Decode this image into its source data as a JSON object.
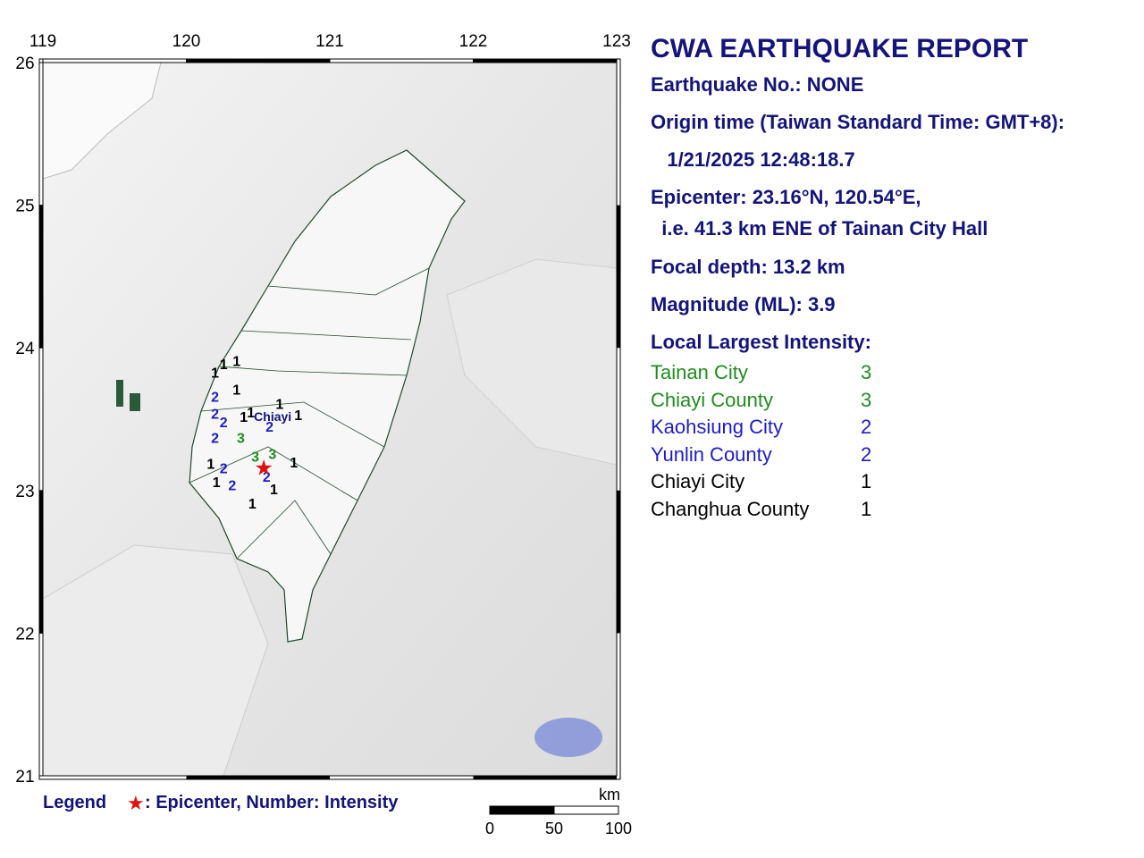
{
  "map": {
    "lon_ticks": [
      119,
      120,
      121,
      122,
      123
    ],
    "lat_ticks": [
      21,
      22,
      23,
      24,
      25,
      26
    ],
    "city_label": "Chiayi",
    "epicenter": {
      "lat": 23.16,
      "lon": 120.54
    },
    "intensity_colors": {
      "1": "#000000",
      "2": "#1c1cc8",
      "3": "#1e8c1e"
    },
    "stations": [
      {
        "lon": 120.2,
        "lat": 23.83,
        "intensity": 1
      },
      {
        "lon": 120.26,
        "lat": 23.89,
        "intensity": 1
      },
      {
        "lon": 120.35,
        "lat": 23.91,
        "intensity": 1
      },
      {
        "lon": 120.35,
        "lat": 23.71,
        "intensity": 1
      },
      {
        "lon": 120.65,
        "lat": 23.61,
        "intensity": 1
      },
      {
        "lon": 120.45,
        "lat": 23.55,
        "intensity": 1
      },
      {
        "lon": 120.4,
        "lat": 23.52,
        "intensity": 1
      },
      {
        "lon": 120.78,
        "lat": 23.53,
        "intensity": 1
      },
      {
        "lon": 120.17,
        "lat": 23.19,
        "intensity": 1
      },
      {
        "lon": 120.21,
        "lat": 23.06,
        "intensity": 1
      },
      {
        "lon": 120.61,
        "lat": 23.01,
        "intensity": 1
      },
      {
        "lon": 120.46,
        "lat": 22.91,
        "intensity": 1
      },
      {
        "lon": 120.75,
        "lat": 23.2,
        "intensity": 1
      },
      {
        "lon": 120.2,
        "lat": 23.66,
        "intensity": 2
      },
      {
        "lon": 120.2,
        "lat": 23.54,
        "intensity": 2
      },
      {
        "lon": 120.26,
        "lat": 23.48,
        "intensity": 2
      },
      {
        "lon": 120.2,
        "lat": 23.37,
        "intensity": 2
      },
      {
        "lon": 120.58,
        "lat": 23.45,
        "intensity": 2
      },
      {
        "lon": 120.26,
        "lat": 23.16,
        "intensity": 2
      },
      {
        "lon": 120.32,
        "lat": 23.04,
        "intensity": 2
      },
      {
        "lon": 120.56,
        "lat": 23.1,
        "intensity": 2
      },
      {
        "lon": 120.38,
        "lat": 23.37,
        "intensity": 3
      },
      {
        "lon": 120.48,
        "lat": 23.24,
        "intensity": 3
      },
      {
        "lon": 120.6,
        "lat": 23.26,
        "intensity": 3
      }
    ]
  },
  "legend": {
    "label": "Legend",
    "text": ": Epicenter, Number: Intensity"
  },
  "scale": {
    "unit": "km",
    "ticks": [
      0,
      50,
      100
    ]
  },
  "report": {
    "title": "CWA EARTHQUAKE REPORT",
    "lines": [
      "Earthquake No.: NONE",
      "Origin time (Taiwan Standard Time: GMT+8):",
      "   1/21/2025 12:48:18.7",
      "Epicenter: 23.16°N, 120.54°E,",
      "  i.e. 41.3 km ENE of Tainan City Hall",
      "Focal depth: 13.2 km",
      "Magnitude (ML): 3.9",
      "Local Largest Intensity:"
    ],
    "intensities": [
      {
        "name": "Tainan City",
        "value": 3
      },
      {
        "name": "Chiayi County",
        "value": 3
      },
      {
        "name": "Kaohsiung City",
        "value": 2
      },
      {
        "name": "Yunlin County",
        "value": 2
      },
      {
        "name": "Chiayi City",
        "value": 1
      },
      {
        "name": "Changhua County",
        "value": 1
      }
    ]
  }
}
